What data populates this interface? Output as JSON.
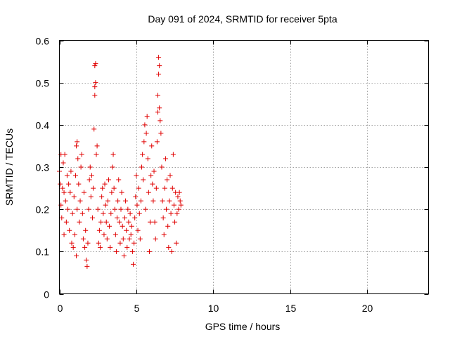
{
  "chart_data": {
    "type": "scatter",
    "title": "Day 091 of 2024, SRMTID for receiver 5pta",
    "xlabel": "GPS time / hours",
    "ylabel": "SRMTID / TECUs",
    "xlim": [
      0,
      24
    ],
    "ylim": [
      0,
      0.6
    ],
    "xticks": [
      0,
      5,
      10,
      15,
      20
    ],
    "xtick_labels": [
      "0",
      "5",
      "10",
      "15",
      "20"
    ],
    "yticks": [
      0,
      0.1,
      0.2,
      0.3,
      0.4,
      0.5,
      0.6
    ],
    "ytick_labels": [
      "0",
      "0.1",
      "0.2",
      "0.3",
      "0.4",
      "0.5",
      "0.6"
    ],
    "grid": true,
    "marker": "plus",
    "color": "#e00000",
    "series": [
      {
        "name": "SRMTID",
        "points": [
          [
            0.0,
            0.29
          ],
          [
            0.05,
            0.26
          ],
          [
            0.1,
            0.21
          ],
          [
            0.1,
            0.33
          ],
          [
            0.15,
            0.18
          ],
          [
            0.2,
            0.25
          ],
          [
            0.25,
            0.31
          ],
          [
            0.3,
            0.14
          ],
          [
            0.3,
            0.24
          ],
          [
            0.35,
            0.33
          ],
          [
            0.4,
            0.22
          ],
          [
            0.45,
            0.17
          ],
          [
            0.5,
            0.28
          ],
          [
            0.55,
            0.2
          ],
          [
            0.6,
            0.26
          ],
          [
            0.65,
            0.15
          ],
          [
            0.7,
            0.24
          ],
          [
            0.75,
            0.29
          ],
          [
            0.8,
            0.12
          ],
          [
            0.85,
            0.19
          ],
          [
            0.9,
            0.11
          ],
          [
            0.95,
            0.23
          ],
          [
            1.0,
            0.14
          ],
          [
            1.05,
            0.28
          ],
          [
            1.1,
            0.09
          ],
          [
            1.15,
            0.2
          ],
          [
            1.1,
            0.35
          ],
          [
            1.15,
            0.36
          ],
          [
            1.2,
            0.32
          ],
          [
            1.25,
            0.26
          ],
          [
            1.3,
            0.17
          ],
          [
            1.35,
            0.22
          ],
          [
            1.4,
            0.3
          ],
          [
            1.45,
            0.33
          ],
          [
            1.5,
            0.19
          ],
          [
            1.55,
            0.13
          ],
          [
            1.6,
            0.24
          ],
          [
            1.65,
            0.11
          ],
          [
            1.7,
            0.15
          ],
          [
            1.75,
            0.08
          ],
          [
            1.8,
            0.065
          ],
          [
            1.85,
            0.12
          ],
          [
            1.9,
            0.2
          ],
          [
            1.95,
            0.27
          ],
          [
            2.0,
            0.3
          ],
          [
            2.05,
            0.23
          ],
          [
            2.1,
            0.28
          ],
          [
            2.15,
            0.18
          ],
          [
            2.2,
            0.25
          ],
          [
            2.25,
            0.39
          ],
          [
            2.3,
            0.47
          ],
          [
            2.3,
            0.49
          ],
          [
            2.35,
            0.5
          ],
          [
            2.3,
            0.54
          ],
          [
            2.35,
            0.545
          ],
          [
            2.4,
            0.33
          ],
          [
            2.45,
            0.35
          ],
          [
            2.5,
            0.2
          ],
          [
            2.55,
            0.12
          ],
          [
            2.6,
            0.15
          ],
          [
            2.65,
            0.11
          ],
          [
            2.7,
            0.17
          ],
          [
            2.75,
            0.23
          ],
          [
            2.8,
            0.25
          ],
          [
            2.85,
            0.19
          ],
          [
            2.9,
            0.14
          ],
          [
            2.95,
            0.26
          ],
          [
            3.0,
            0.21
          ],
          [
            3.05,
            0.17
          ],
          [
            3.1,
            0.13
          ],
          [
            3.15,
            0.22
          ],
          [
            3.2,
            0.27
          ],
          [
            3.25,
            0.16
          ],
          [
            3.3,
            0.11
          ],
          [
            3.35,
            0.19
          ],
          [
            3.4,
            0.24
          ],
          [
            3.45,
            0.3
          ],
          [
            3.5,
            0.33
          ],
          [
            3.55,
            0.25
          ],
          [
            3.6,
            0.2
          ],
          [
            3.65,
            0.14
          ],
          [
            3.7,
            0.1
          ],
          [
            3.75,
            0.18
          ],
          [
            3.8,
            0.22
          ],
          [
            3.85,
            0.27
          ],
          [
            3.9,
            0.17
          ],
          [
            3.95,
            0.12
          ],
          [
            4.0,
            0.2
          ],
          [
            4.05,
            0.24
          ],
          [
            4.1,
            0.16
          ],
          [
            4.15,
            0.13
          ],
          [
            4.2,
            0.09
          ],
          [
            4.25,
            0.18
          ],
          [
            4.3,
            0.22
          ],
          [
            4.35,
            0.15
          ],
          [
            4.4,
            0.11
          ],
          [
            4.45,
            0.2
          ],
          [
            4.5,
            0.17
          ],
          [
            4.55,
            0.13
          ],
          [
            4.6,
            0.19
          ],
          [
            4.65,
            0.14
          ],
          [
            4.7,
            0.16
          ],
          [
            4.75,
            0.1
          ],
          [
            4.8,
            0.07
          ],
          [
            4.85,
            0.12
          ],
          [
            4.9,
            0.18
          ],
          [
            4.95,
            0.23
          ],
          [
            5.0,
            0.28
          ],
          [
            5.05,
            0.21
          ],
          [
            5.1,
            0.15
          ],
          [
            5.15,
            0.25
          ],
          [
            5.2,
            0.19
          ],
          [
            5.25,
            0.13
          ],
          [
            5.3,
            0.22
          ],
          [
            5.35,
            0.3
          ],
          [
            5.4,
            0.33
          ],
          [
            5.45,
            0.27
          ],
          [
            5.5,
            0.36
          ],
          [
            5.55,
            0.4
          ],
          [
            5.6,
            0.2
          ],
          [
            5.65,
            0.38
          ],
          [
            5.7,
            0.42
          ],
          [
            5.75,
            0.32
          ],
          [
            5.8,
            0.24
          ],
          [
            5.85,
            0.1
          ],
          [
            5.9,
            0.17
          ],
          [
            5.95,
            0.28
          ],
          [
            6.0,
            0.35
          ],
          [
            6.05,
            0.26
          ],
          [
            6.1,
            0.22
          ],
          [
            6.15,
            0.29
          ],
          [
            6.2,
            0.17
          ],
          [
            6.25,
            0.13
          ],
          [
            6.3,
            0.25
          ],
          [
            6.35,
            0.36
          ],
          [
            6.4,
            0.47
          ],
          [
            6.45,
            0.52
          ],
          [
            6.4,
            0.43
          ],
          [
            6.45,
            0.56
          ],
          [
            6.5,
            0.44
          ],
          [
            6.5,
            0.54
          ],
          [
            6.55,
            0.41
          ],
          [
            6.6,
            0.38
          ],
          [
            6.65,
            0.3
          ],
          [
            6.7,
            0.22
          ],
          [
            6.75,
            0.18
          ],
          [
            6.8,
            0.14
          ],
          [
            6.85,
            0.25
          ],
          [
            6.9,
            0.32
          ],
          [
            6.95,
            0.2
          ],
          [
            7.0,
            0.27
          ],
          [
            7.05,
            0.16
          ],
          [
            7.1,
            0.11
          ],
          [
            7.15,
            0.22
          ],
          [
            7.2,
            0.28
          ],
          [
            7.25,
            0.19
          ],
          [
            7.3,
            0.1
          ],
          [
            7.35,
            0.25
          ],
          [
            7.4,
            0.33
          ],
          [
            7.45,
            0.21
          ],
          [
            7.5,
            0.17
          ],
          [
            7.55,
            0.24
          ],
          [
            7.6,
            0.12
          ],
          [
            7.65,
            0.19
          ],
          [
            7.7,
            0.23
          ],
          [
            7.75,
            0.2
          ],
          [
            7.8,
            0.24
          ],
          [
            7.85,
            0.22
          ],
          [
            7.9,
            0.21
          ]
        ]
      }
    ]
  }
}
